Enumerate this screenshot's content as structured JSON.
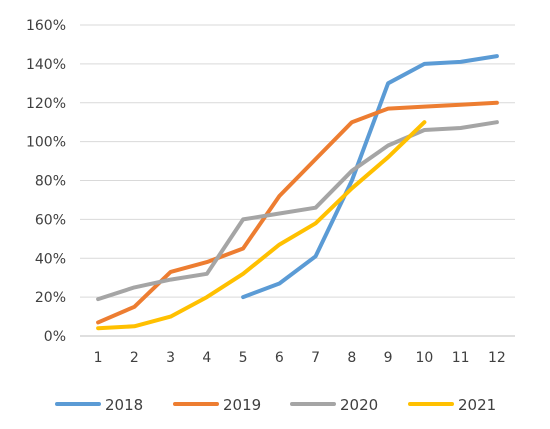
{
  "chart_data": {
    "type": "line",
    "title": "",
    "xlabel": "",
    "ylabel": "",
    "categories": [
      "1",
      "2",
      "3",
      "4",
      "5",
      "6",
      "7",
      "8",
      "9",
      "10",
      "11",
      "12"
    ],
    "y_ticks": [
      "0%",
      "20%",
      "40%",
      "60%",
      "80%",
      "100%",
      "120%",
      "140%",
      "160%"
    ],
    "ylim": [
      0,
      160
    ],
    "y_unit": "%",
    "grid": "horizontal",
    "legend_position": "bottom",
    "series": [
      {
        "name": "2018",
        "color": "#5b9bd5",
        "values": [
          null,
          null,
          null,
          null,
          20,
          27,
          41,
          80,
          130,
          140,
          141,
          144
        ]
      },
      {
        "name": "2019",
        "color": "#ed7d31",
        "values": [
          7,
          15,
          33,
          38,
          45,
          72,
          91,
          110,
          117,
          118,
          119,
          120
        ]
      },
      {
        "name": "2020",
        "color": "#a5a5a5",
        "values": [
          19,
          25,
          29,
          32,
          60,
          63,
          66,
          85,
          98,
          106,
          107,
          110
        ]
      },
      {
        "name": "2021",
        "color": "#ffc000",
        "values": [
          4,
          5,
          10,
          20,
          32,
          47,
          58,
          76,
          92,
          110,
          null,
          null
        ]
      }
    ]
  }
}
